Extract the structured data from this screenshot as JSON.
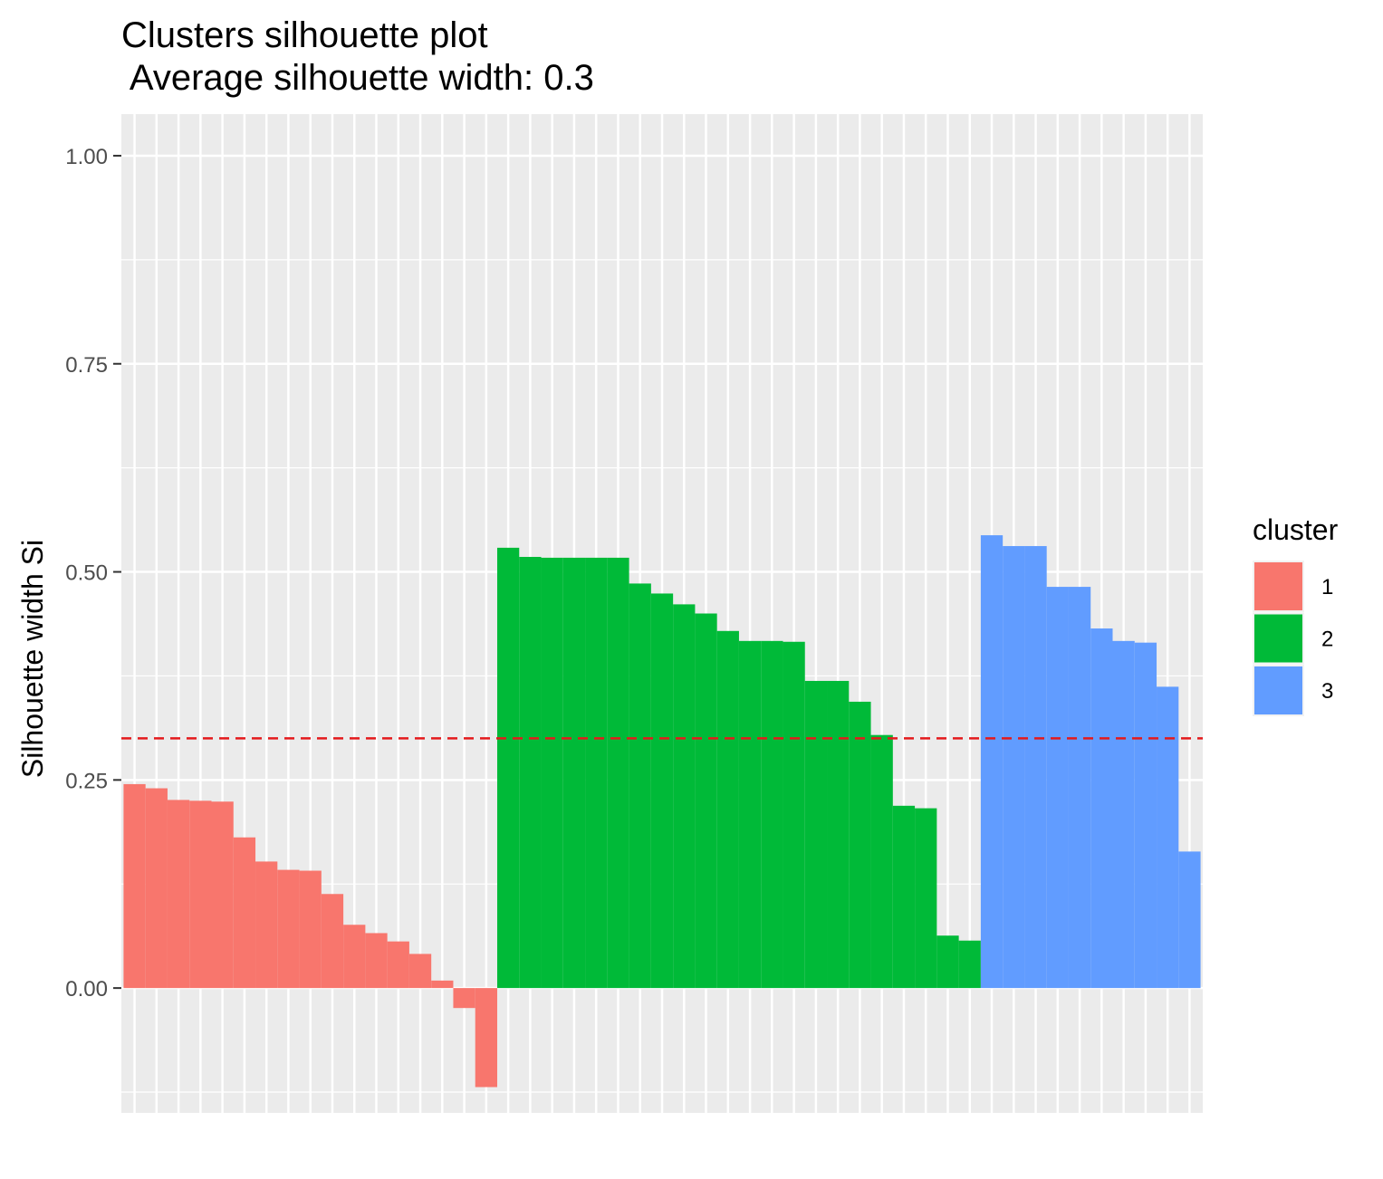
{
  "chart_data": {
    "type": "bar",
    "title": "Clusters silhouette plot",
    "subtitle": " Average silhouette width: 0.3",
    "xlabel": "",
    "ylabel": "Silhouette width Si",
    "ylim": [
      -0.15,
      1.05
    ],
    "yticks": [
      0.0,
      0.25,
      0.5,
      0.75,
      1.0
    ],
    "ytick_labels": [
      "0.00",
      "0.25",
      "0.50",
      "0.75",
      "1.00"
    ],
    "average_line": 0.3,
    "average_line_color": "#e41a1c",
    "grid": true,
    "legend_position": "right",
    "legend_title": "cluster",
    "series": [
      {
        "name": "1",
        "color": "#F8766D",
        "values": [
          0.245,
          0.24,
          0.226,
          0.225,
          0.224,
          0.181,
          0.152,
          0.142,
          0.141,
          0.113,
          0.076,
          0.066,
          0.056,
          0.041,
          0.009,
          -0.024,
          -0.119
        ]
      },
      {
        "name": "2",
        "color": "#00BA38",
        "values": [
          0.529,
          0.518,
          0.517,
          0.517,
          0.517,
          0.517,
          0.486,
          0.474,
          0.461,
          0.45,
          0.429,
          0.417,
          0.417,
          0.416,
          0.369,
          0.369,
          0.344,
          0.304,
          0.219,
          0.216,
          0.063,
          0.057
        ]
      },
      {
        "name": "3",
        "color": "#619CFF",
        "values": [
          0.544,
          0.531,
          0.531,
          0.482,
          0.482,
          0.432,
          0.417,
          0.415,
          0.362,
          0.164
        ]
      }
    ]
  }
}
